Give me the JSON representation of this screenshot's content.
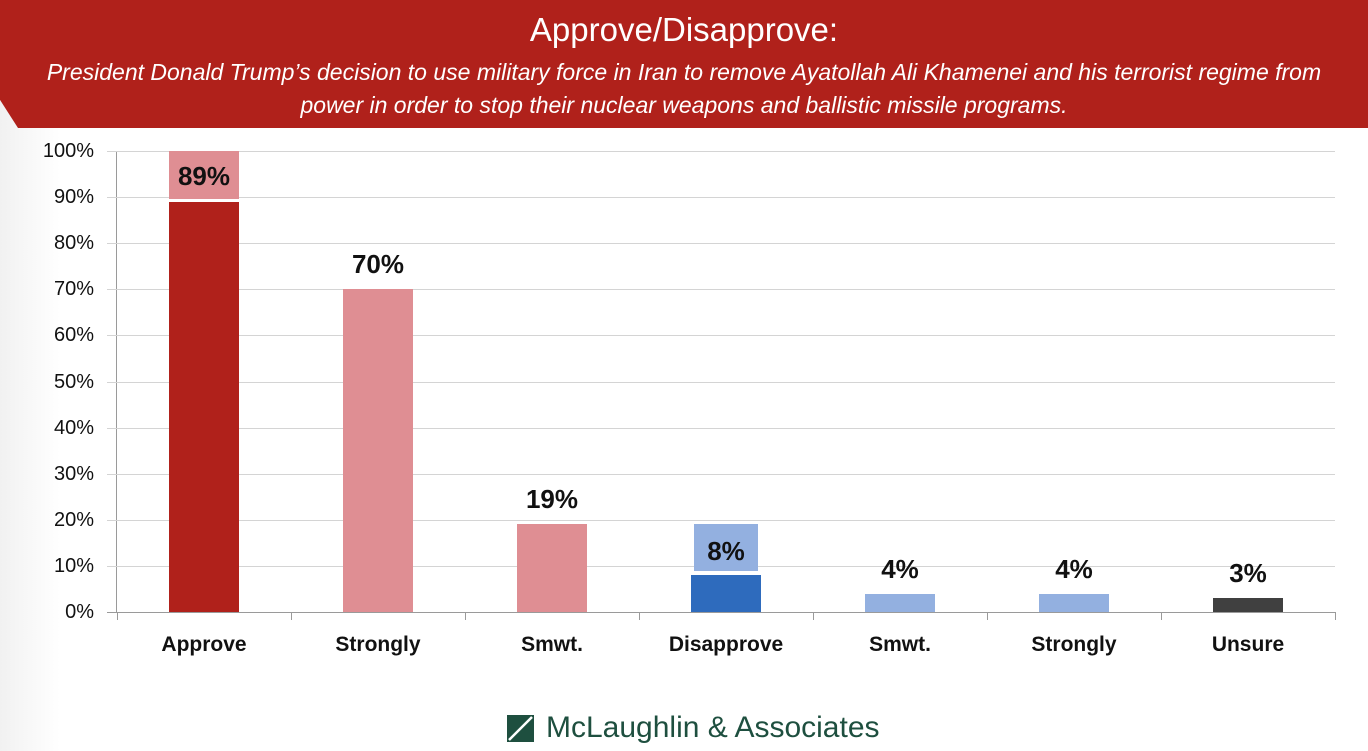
{
  "header": {
    "title": "Approve/Disapprove:",
    "subtitle": "President Donald Trump’s decision to use military force in Iran to remove Ayatollah Ali Khamenei and his terrorist regime from power in order to stop their nuclear weapons and ballistic missile programs."
  },
  "footer": {
    "logo_text": "McLaughlin & Associates",
    "logo_icon": "slash-square-icon",
    "logo_color": "#1e4f3f"
  },
  "y_ticks": [
    "100%",
    "90%",
    "80%",
    "70%",
    "60%",
    "50%",
    "40%",
    "30%",
    "20%",
    "10%",
    "0%"
  ],
  "colors": {
    "approve": "#b0211b",
    "approve_sub": "#df8e93",
    "disapprove": "#2e6bbd",
    "disapprove_sub": "#93b0e0",
    "unsure": "#404040",
    "banner": "#b0211b"
  },
  "chart_data": {
    "type": "bar",
    "title": "Approve/Disapprove:",
    "subtitle": "President Donald Trump’s decision to use military force in Iran to remove Ayatollah Ali Khamenei and his terrorist regime from power in order to stop their nuclear weapons and ballistic missile programs.",
    "categories": [
      "Approve",
      "Strongly",
      "Smwt.",
      "Disapprove",
      "Smwt.",
      "Strongly",
      "Unsure"
    ],
    "values": [
      89,
      70,
      19,
      8,
      4,
      4,
      3
    ],
    "value_labels": [
      "89%",
      "70%",
      "19%",
      "8%",
      "4%",
      "4%",
      "3%"
    ],
    "bar_colors": [
      "#b0211b",
      "#df8e93",
      "#df8e93",
      "#2e6bbd",
      "#93b0e0",
      "#93b0e0",
      "#404040"
    ],
    "groups": [
      {
        "name": "Approve",
        "total": 89,
        "breakdown": {
          "Strongly": 70,
          "Smwt.": 19
        }
      },
      {
        "name": "Disapprove",
        "total": 8,
        "breakdown": {
          "Smwt.": 4,
          "Strongly": 4
        }
      },
      {
        "name": "Unsure",
        "total": 3
      }
    ],
    "xlabel": "",
    "ylabel": "",
    "ylim": [
      0,
      100
    ],
    "yticks": [
      0,
      10,
      20,
      30,
      40,
      50,
      60,
      70,
      80,
      90,
      100
    ],
    "ytick_format": "percent",
    "grid": true,
    "legend": null
  }
}
